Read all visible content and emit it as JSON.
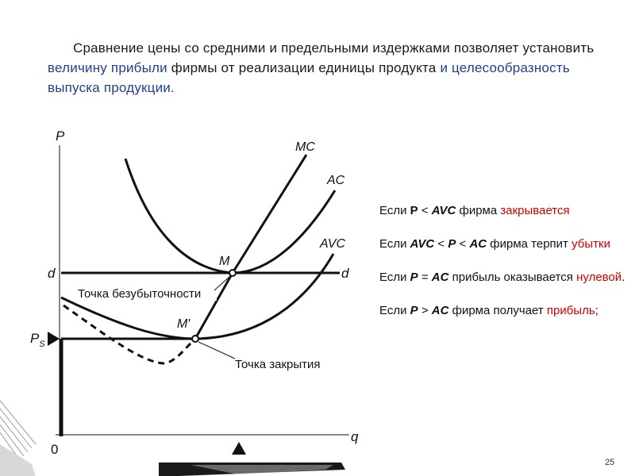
{
  "intro": {
    "part1": "Сравнение цены со средними и предельными  издержками позволяет установить ",
    "highlight1": "величину прибыли",
    "part2": " фирмы от реализации единицы продукта ",
    "highlight2": "и целесообразность выпуска продукции."
  },
  "diagram": {
    "y_axis": "P",
    "x_axis": "q",
    "origin": "0",
    "labels": {
      "mc": "MC",
      "ac": "AC",
      "avc": "AVC",
      "d_left": "d",
      "d_right": "d",
      "m": "M",
      "m_prime": "M′",
      "ps_main": "P",
      "ps_sub": "S",
      "breakeven": "Точка безубыточности",
      "shutdown": "Точка закрытия"
    }
  },
  "rules": [
    {
      "p1": "Если ",
      "b1": "P",
      "p2": " <  ",
      "b2": "AVC",
      "p3": "  фирма  ",
      "red": "закрывается",
      "p4": ""
    },
    {
      "p1": "Если ",
      "b1": "AVC",
      "p2": " < ",
      "b2": "P",
      "p3": " <  ",
      "b3": "AC",
      "p4": "  фирма терпит ",
      "red": "убытки",
      "p5": ""
    },
    {
      "p1": "Если ",
      "b1": "P",
      "p2": " = ",
      "b2": "AC",
      "p3": " прибыль оказывается ",
      "red": "нулевой",
      "p4": "."
    },
    {
      "p1": "Если ",
      "b1": "P",
      "p2": " > ",
      "b2": "AC",
      "p3": " фирма получает ",
      "red": "прибыль",
      "p4": ";"
    }
  ],
  "page_number": "25"
}
